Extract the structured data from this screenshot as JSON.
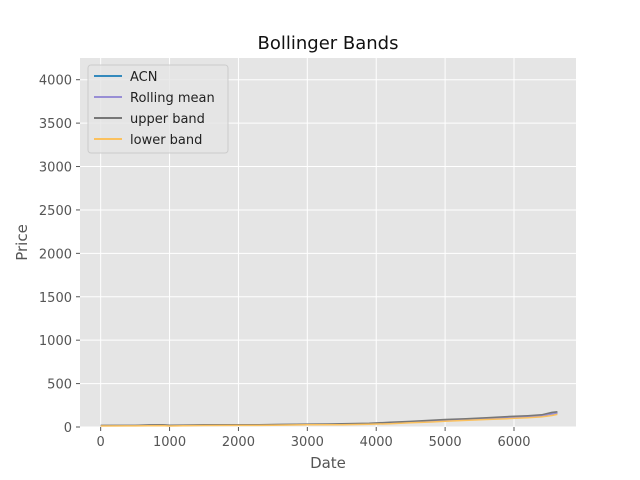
{
  "chart_data": {
    "type": "line",
    "title": "Bollinger Bands",
    "xlabel": "Date",
    "ylabel": "Price",
    "xlim": [
      -300,
      6900
    ],
    "ylim": [
      0,
      4250
    ],
    "xticks": [
      0,
      1000,
      2000,
      3000,
      4000,
      5000,
      6000
    ],
    "yticks": [
      0,
      500,
      1000,
      1500,
      2000,
      2500,
      3000,
      3500,
      4000
    ],
    "grid": true,
    "legend_position": "top-left",
    "colors": {
      "background": "#e5e5e5",
      "grid": "#ffffff"
    },
    "x": [
      0,
      500,
      700,
      900,
      1000,
      1200,
      1500,
      2000,
      2300,
      2500,
      3000,
      3300,
      3500,
      3900,
      4200,
      4500,
      4800,
      5000,
      5300,
      5600,
      5900,
      6200,
      6400,
      6550,
      6630
    ],
    "series": [
      {
        "name": "ACN",
        "color": "#348abd",
        "values": [
          15,
          16,
          20,
          22,
          15,
          18,
          22,
          24,
          22,
          26,
          30,
          30,
          33,
          38,
          48,
          58,
          70,
          78,
          88,
          98,
          112,
          120,
          130,
          158,
          165
        ]
      },
      {
        "name": "Rolling mean",
        "color": "#988ed5",
        "values": [
          15,
          16,
          19,
          21,
          16,
          18,
          21,
          23,
          23,
          25,
          29,
          30,
          32,
          37,
          46,
          56,
          68,
          76,
          86,
          96,
          108,
          118,
          128,
          150,
          160
        ]
      },
      {
        "name": "upper band",
        "color": "#777777",
        "values": [
          18,
          19,
          24,
          26,
          20,
          22,
          25,
          27,
          26,
          29,
          33,
          34,
          37,
          43,
          54,
          64,
          78,
          86,
          96,
          106,
          120,
          130,
          140,
          168,
          175
        ]
      },
      {
        "name": "lower band",
        "color": "#fbc15e",
        "values": [
          12,
          13,
          15,
          16,
          12,
          14,
          17,
          19,
          19,
          21,
          25,
          26,
          27,
          31,
          38,
          48,
          58,
          66,
          76,
          86,
          96,
          106,
          116,
          132,
          145
        ]
      }
    ]
  }
}
